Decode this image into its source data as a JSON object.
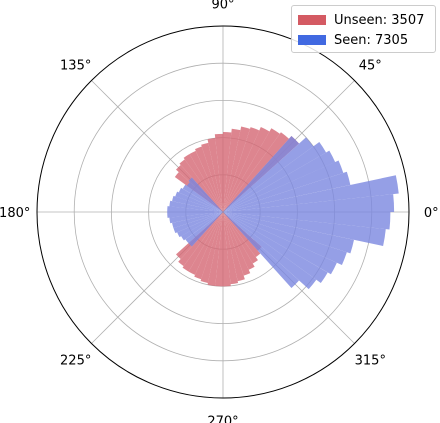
{
  "chart_data": {
    "type": "polar-bar",
    "title": "",
    "angular_ticks": [
      "0°",
      "45°",
      "90°",
      "135°",
      "180°",
      "225°",
      "270°",
      "315°"
    ],
    "radial_max": 100,
    "radial_grid": [
      20,
      40,
      60,
      80
    ],
    "grid": true,
    "legend_placement": "top-right",
    "bin_width_deg": 6,
    "series": [
      {
        "name": "Unseen: 3507",
        "color": "#d46673",
        "theta_deg": [
          45,
          51,
          57,
          63,
          69,
          75,
          81,
          87,
          93,
          99,
          105,
          111,
          117,
          123,
          129,
          135,
          141,
          225,
          231,
          237,
          243,
          249,
          255,
          261,
          267,
          273,
          279,
          285,
          291,
          297,
          303,
          309,
          315
        ],
        "r": [
          55,
          53,
          52,
          50,
          48,
          47,
          45,
          43,
          42,
          40,
          38,
          37,
          36,
          36,
          35,
          34,
          32,
          34,
          36,
          37,
          37,
          38,
          39,
          40,
          40,
          40,
          39,
          38,
          36,
          34,
          32,
          30,
          28
        ]
      },
      {
        "name": "Seen: 7305",
        "color": "#7b87e0",
        "theta_deg": [
          -45,
          -39,
          -33,
          -27,
          -21,
          -15,
          -9,
          -3,
          3,
          9,
          15,
          21,
          27,
          33,
          39,
          45,
          135,
          141,
          147,
          153,
          159,
          165,
          171,
          177,
          183,
          189,
          195,
          201,
          207,
          213,
          219,
          225
        ],
        "r": [
          55,
          62,
          65,
          67,
          70,
          72,
          88,
          90,
          92,
          95,
          70,
          68,
          66,
          64,
          60,
          55,
          25,
          24,
          25,
          26,
          27,
          28,
          29,
          30,
          30,
          29,
          28,
          28,
          27,
          26,
          25,
          25
        ]
      }
    ]
  },
  "legend": {
    "items": [
      {
        "label": "Unseen: 3507",
        "color": "#d45a63"
      },
      {
        "label": "Seen: 7305",
        "color": "#4169e1"
      }
    ]
  }
}
